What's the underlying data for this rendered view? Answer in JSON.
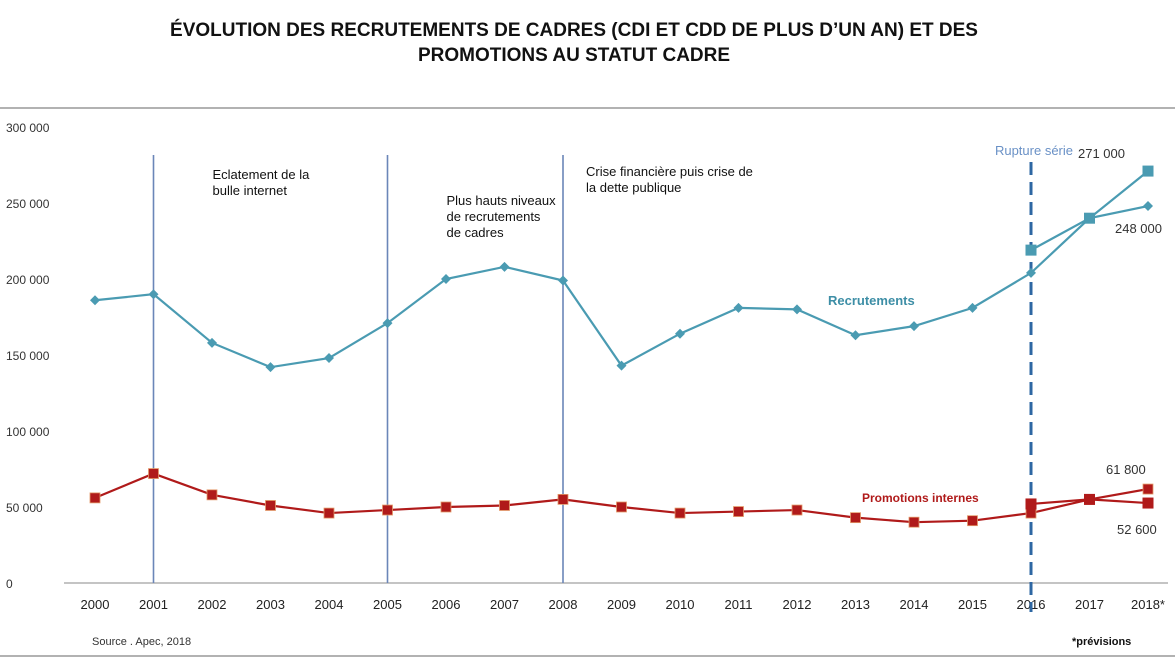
{
  "title_line1": "ÉVOLUTION DES RECRUTEMENTS DE CADRES (CDI ET CDD DE PLUS D’UN AN) ET DES",
  "title_line2": "PROMOTIONS AU STATUT CADRE",
  "source": "Source . Apec, 2018",
  "footnote": "*prévisions",
  "chart_data": {
    "type": "line",
    "categories": [
      "2000",
      "2001",
      "2002",
      "2003",
      "2004",
      "2005",
      "2006",
      "2007",
      "2008",
      "2009",
      "2010",
      "2011",
      "2012",
      "2013",
      "2014",
      "2015",
      "2016",
      "2017",
      "2018*"
    ],
    "ylim": [
      0,
      300000
    ],
    "yticks": [
      0,
      50000,
      100000,
      150000,
      200000,
      250000,
      300000
    ],
    "ytick_labels": [
      "0",
      "50 000",
      "100 000",
      "150 000",
      "200 000",
      "250 000",
      "300 000"
    ],
    "grid": false,
    "series": [
      {
        "name": "Recrutements",
        "color": "#4a9bb2",
        "values": [
          186000,
          190000,
          158000,
          142000,
          148000,
          171000,
          200000,
          208000,
          199000,
          143000,
          164000,
          181000,
          180000,
          163000,
          169000,
          181000,
          204000,
          240000,
          248000
        ],
        "new_series_values": [
          219000,
          240000,
          271000
        ],
        "new_series_start_index": 16
      },
      {
        "name": "Promotions internes",
        "color": "#b01a1a",
        "values": [
          56000,
          72000,
          58000,
          51000,
          46000,
          48000,
          50000,
          51000,
          55000,
          50000,
          46000,
          47000,
          48000,
          43000,
          40000,
          41000,
          46000,
          55000,
          61800
        ],
        "new_series_values": [
          52000,
          55000,
          52600
        ],
        "new_series_start_index": 16
      }
    ],
    "annotations": {
      "events": [
        {
          "index": 1,
          "text_lines": [
            "Eclatement de la",
            "bulle internet"
          ]
        },
        {
          "index": 5,
          "text_lines": [
            "Plus hauts niveaux",
            "de recrutements",
            "de cadres"
          ]
        },
        {
          "index": 8,
          "text_lines": [
            "Crise financière puis crise de",
            "la dette publique"
          ]
        }
      ],
      "rupture": {
        "index": 16,
        "text": "Rupture série"
      },
      "value_labels": [
        "271 000",
        "248 000",
        "61 800",
        "52 600"
      ]
    }
  }
}
